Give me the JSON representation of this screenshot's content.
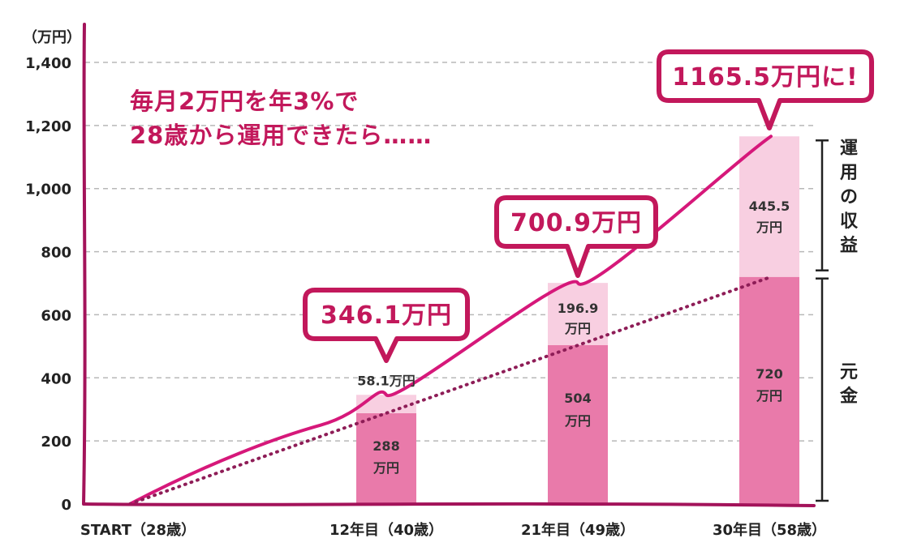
{
  "chart_data": {
    "type": "bar",
    "y_unit": "（万円）",
    "ylim": [
      0,
      1400
    ],
    "yticks": [
      {
        "value": 0,
        "label": "0"
      },
      {
        "value": 200,
        "label": "200"
      },
      {
        "value": 400,
        "label": "400"
      },
      {
        "value": 600,
        "label": "600"
      },
      {
        "value": 800,
        "label": "800"
      },
      {
        "value": 1000,
        "label": "1,000"
      },
      {
        "value": 1200,
        "label": "1,200"
      },
      {
        "value": 1400,
        "label": "1,400"
      }
    ],
    "grid": true,
    "headline": [
      "毎月2万円を年3%で",
      "28歳から運用できたら……"
    ],
    "categories": [
      "START（28歳）",
      "12年目（40歳）",
      "21年目（49歳）",
      "30年目（58歳）"
    ],
    "series": [
      {
        "key": "principal",
        "values": [
          0,
          288,
          504,
          720
        ],
        "labels": [
          [
            "",
            ""
          ],
          [
            "288",
            "万円"
          ],
          [
            "504",
            "万円"
          ],
          [
            "720",
            "万円"
          ]
        ],
        "color": "#e97aaa"
      },
      {
        "key": "gain",
        "values": [
          0,
          58.1,
          196.9,
          445.5
        ],
        "labels": [
          [
            ""
          ],
          [
            "58.1万円"
          ],
          [
            "196.9",
            "万円"
          ],
          [
            "445.5",
            "万円"
          ]
        ],
        "color": "#f8cfe1"
      }
    ],
    "totals": [
      0,
      346.1,
      700.9,
      1165.5
    ],
    "callouts": [
      "",
      "346.1万円",
      "700.9万円",
      "1165.5万円に!"
    ],
    "side_labels": {
      "gain": "運用の収益",
      "principal": "元金"
    },
    "colors": {
      "accent": "#c2185b",
      "axis": "#a3135a",
      "dotted": "#8e1d57"
    }
  }
}
